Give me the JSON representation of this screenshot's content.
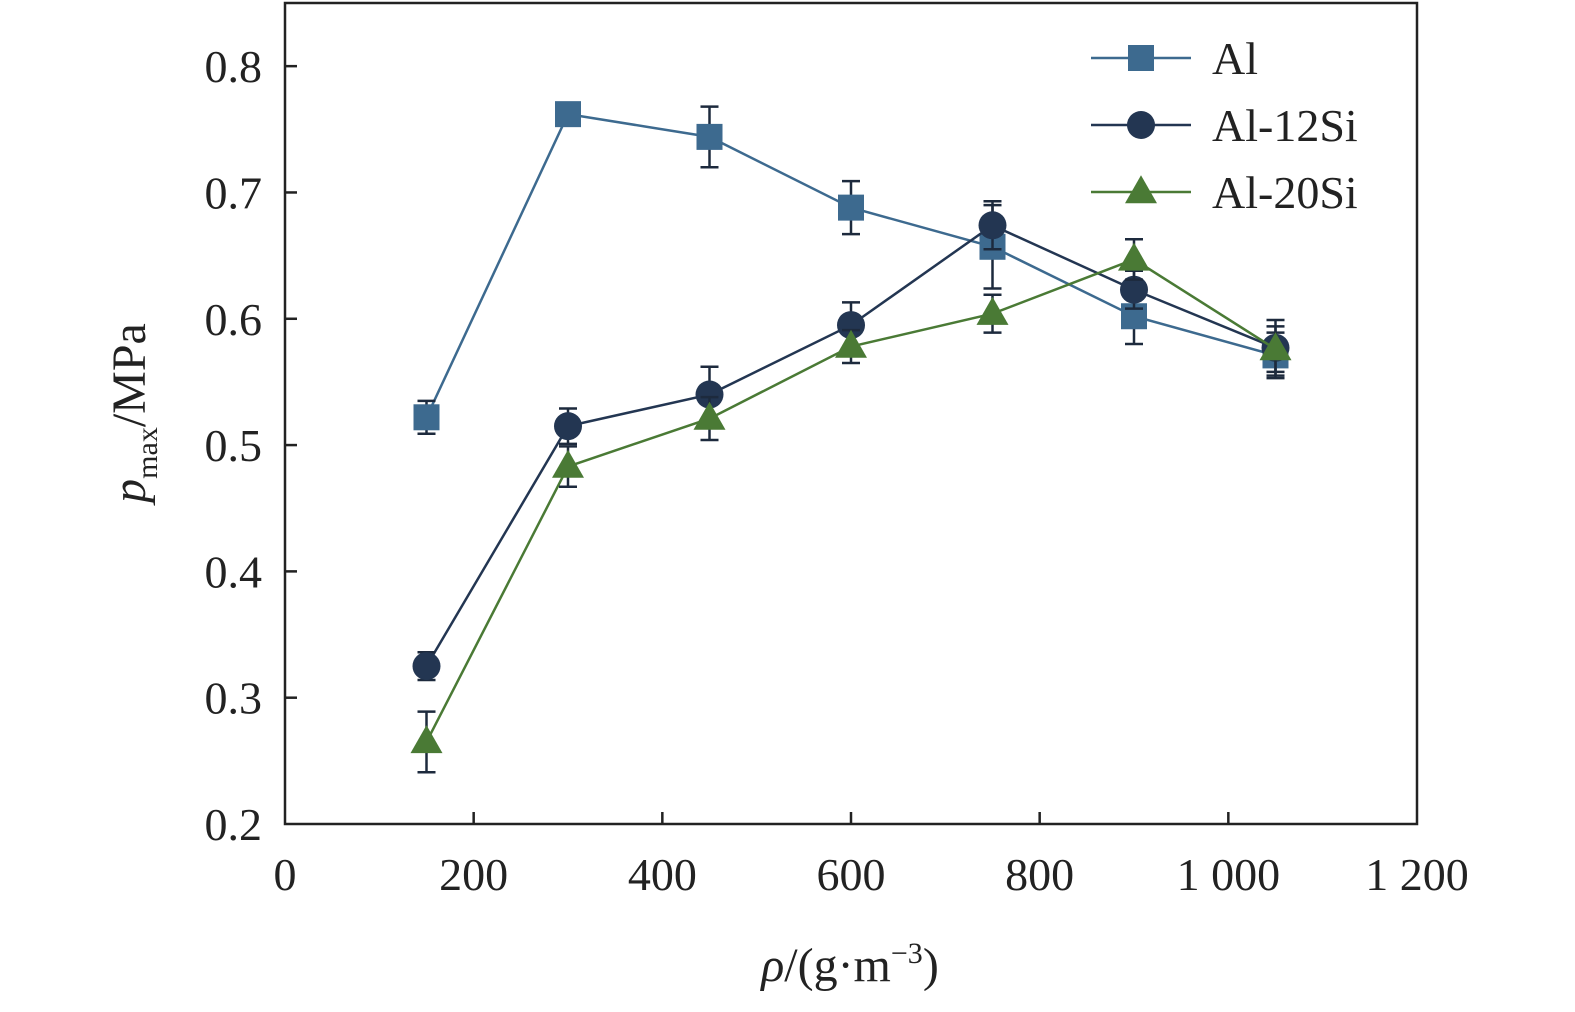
{
  "chart_data": {
    "type": "line",
    "xlabel": {
      "symbol": "ρ",
      "unit_pre": "/(g·m",
      "sup": "−3",
      "unit_post": ")"
    },
    "ylabel": {
      "symbol": "p",
      "sub": "max",
      "unit": "/MPa"
    },
    "xlim": [
      0,
      1200
    ],
    "ylim": [
      0.2,
      0.85
    ],
    "x_ticks": [
      0,
      200,
      400,
      600,
      800,
      1000,
      1200
    ],
    "x_tick_labels": [
      "0",
      "200",
      "400",
      "600",
      "800",
      "1 000",
      "1 200"
    ],
    "y_ticks": [
      0.2,
      0.3,
      0.4,
      0.5,
      0.6,
      0.7,
      0.8
    ],
    "y_tick_labels": [
      "0.2",
      "0.3",
      "0.4",
      "0.5",
      "0.6",
      "0.7",
      "0.8"
    ],
    "grid": false,
    "legend_position": "top-right",
    "x": [
      150,
      300,
      450,
      600,
      750,
      900,
      1050
    ],
    "series": [
      {
        "name": "Al",
        "marker": "square",
        "color": "#3d6a8f",
        "values": [
          0.522,
          0.762,
          0.744,
          0.688,
          0.657,
          0.602,
          0.571
        ],
        "errors": [
          0.013,
          0.007,
          0.024,
          0.021,
          0.033,
          0.022,
          0.018
        ]
      },
      {
        "name": "Al-12Si",
        "marker": "circle",
        "color": "#233652",
        "values": [
          0.325,
          0.515,
          0.54,
          0.595,
          0.674,
          0.623,
          0.577
        ],
        "errors": [
          0.011,
          0.014,
          0.022,
          0.018,
          0.019,
          0.015,
          0.022
        ]
      },
      {
        "name": "Al-20Si",
        "marker": "triangle",
        "color": "#4a7a35",
        "values": [
          0.265,
          0.483,
          0.521,
          0.578,
          0.604,
          0.647,
          0.576
        ],
        "errors": [
          0.024,
          0.016,
          0.017,
          0.013,
          0.015,
          0.016,
          0.018
        ]
      }
    ]
  }
}
